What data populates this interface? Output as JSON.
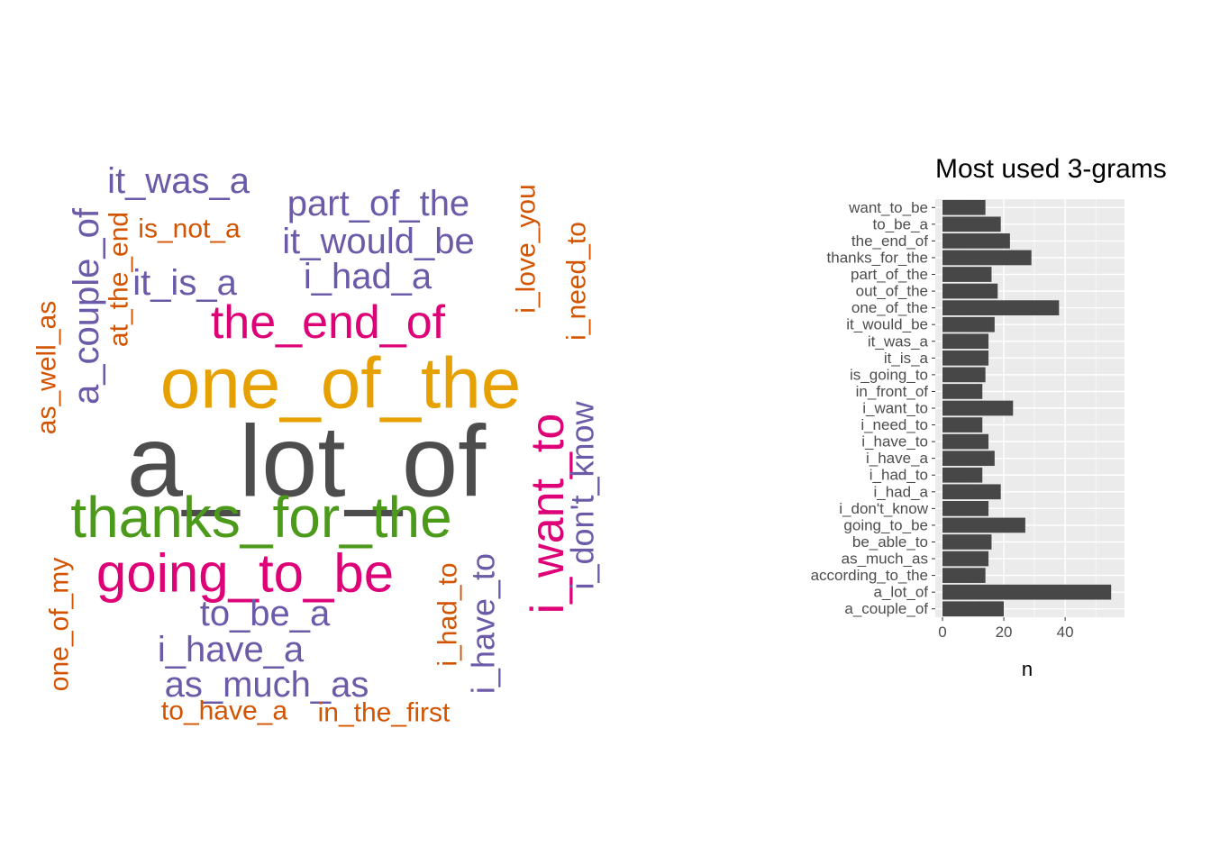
{
  "wordcloud": {
    "palette": {
      "gray": "#4d4d4d",
      "gold": "#e6a000",
      "green": "#4c9a1a",
      "magenta": "#dd0077",
      "purple": "#6a5aa8",
      "orange": "#d35400"
    },
    "words": [
      {
        "text": "a_lot_of",
        "color": "gray"
      },
      {
        "text": "one_of_the",
        "color": "gold"
      },
      {
        "text": "thanks_for_the",
        "color": "green"
      },
      {
        "text": "going_to_be",
        "color": "magenta"
      },
      {
        "text": "the_end_of",
        "color": "magenta"
      },
      {
        "text": "i_want_to",
        "color": "magenta"
      },
      {
        "text": "a_couple_of",
        "color": "purple"
      },
      {
        "text": "it_was_a",
        "color": "purple"
      },
      {
        "text": "part_of_the",
        "color": "purple"
      },
      {
        "text": "it_would_be",
        "color": "purple"
      },
      {
        "text": "i_had_a",
        "color": "purple"
      },
      {
        "text": "it_is_a",
        "color": "purple"
      },
      {
        "text": "to_be_a",
        "color": "purple"
      },
      {
        "text": "i_have_a",
        "color": "purple"
      },
      {
        "text": "as_much_as",
        "color": "purple"
      },
      {
        "text": "i_don't_know",
        "color": "purple"
      },
      {
        "text": "i_have_to",
        "color": "purple"
      },
      {
        "text": "is_not_a",
        "color": "orange"
      },
      {
        "text": "at_the_end",
        "color": "orange"
      },
      {
        "text": "as_well_as",
        "color": "orange"
      },
      {
        "text": "i_love_you",
        "color": "orange"
      },
      {
        "text": "i_need_to",
        "color": "orange"
      },
      {
        "text": "one_of_my",
        "color": "orange"
      },
      {
        "text": "i_had_to",
        "color": "orange"
      },
      {
        "text": "to_have_a",
        "color": "orange"
      },
      {
        "text": "in_the_first",
        "color": "orange"
      }
    ]
  },
  "chart_data": {
    "type": "bar",
    "orientation": "horizontal",
    "title": "Most used 3-grams",
    "xlabel": "n",
    "ylabel": "",
    "xlim": [
      0,
      57
    ],
    "xticks": [
      0,
      20,
      40
    ],
    "grid": true,
    "bar_color": "#474747",
    "panel_color": "#ebebeb",
    "categories": [
      "want_to_be",
      "to_be_a",
      "the_end_of",
      "thanks_for_the",
      "part_of_the",
      "out_of_the",
      "one_of_the",
      "it_would_be",
      "it_was_a",
      "it_is_a",
      "is_going_to",
      "in_front_of",
      "i_want_to",
      "i_need_to",
      "i_have_to",
      "i_have_a",
      "i_had_to",
      "i_had_a",
      "i_don't_know",
      "going_to_be",
      "be_able_to",
      "as_much_as",
      "according_to_the",
      "a_lot_of",
      "a_couple_of"
    ],
    "values": [
      14,
      19,
      22,
      29,
      16,
      18,
      38,
      17,
      15,
      15,
      14,
      13,
      23,
      13,
      15,
      17,
      13,
      19,
      15,
      27,
      16,
      15,
      14,
      55,
      20
    ]
  }
}
